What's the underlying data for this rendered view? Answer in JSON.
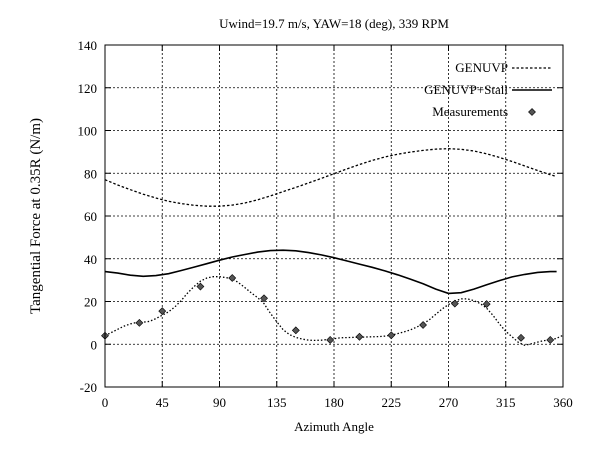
{
  "chart_data": {
    "type": "line",
    "title": "Uwind=19.7 m/s, YAW=18 (deg), 339 RPM",
    "xlabel": "Azimuth Angle",
    "ylabel": "Tangential Force at 0.35R  (N/m)",
    "xlim": [
      0,
      360
    ],
    "ylim": [
      -20,
      140
    ],
    "xticks": [
      0,
      45,
      90,
      135,
      180,
      225,
      270,
      315,
      360
    ],
    "yticks": [
      -20,
      0,
      20,
      40,
      60,
      80,
      100,
      120,
      140
    ],
    "grid": true,
    "legend_position": "top-right",
    "series": [
      {
        "name": "GENUVP",
        "style": "dotted",
        "color": "#000000",
        "x": [
          0,
          10,
          20,
          30,
          40,
          50,
          60,
          70,
          80,
          90,
          100,
          110,
          120,
          130,
          140,
          150,
          160,
          170,
          180,
          190,
          200,
          210,
          220,
          230,
          240,
          250,
          260,
          270,
          280,
          290,
          300,
          310,
          320,
          330,
          340,
          350,
          355
        ],
        "y": [
          77,
          74.5,
          72.3,
          70.2,
          68.4,
          66.9,
          65.8,
          65.0,
          64.6,
          64.6,
          65.1,
          66.1,
          67.6,
          69.4,
          71.4,
          73.4,
          75.5,
          77.6,
          79.8,
          82.0,
          84.1,
          86.0,
          87.6,
          88.9,
          89.9,
          90.7,
          91.3,
          91.5,
          91.2,
          90.4,
          89.1,
          87.4,
          85.5,
          83.4,
          81.3,
          79.3,
          78.5
        ]
      },
      {
        "name": "GENUVP+Stall",
        "style": "solid",
        "color": "#000000",
        "x": [
          0,
          10,
          20,
          30,
          40,
          50,
          60,
          70,
          80,
          90,
          100,
          110,
          120,
          130,
          140,
          150,
          160,
          170,
          180,
          190,
          200,
          210,
          220,
          230,
          240,
          250,
          260,
          270,
          280,
          290,
          300,
          310,
          320,
          330,
          340,
          350,
          355
        ],
        "y": [
          34,
          33.3,
          32.3,
          31.8,
          32.1,
          33.0,
          34.5,
          36.1,
          37.7,
          39.3,
          40.8,
          42.0,
          43.1,
          43.8,
          44.0,
          43.7,
          42.9,
          41.8,
          40.5,
          39.0,
          37.5,
          36.0,
          34.3,
          32.5,
          30.5,
          28.3,
          25.8,
          23.8,
          24.1,
          25.8,
          27.8,
          29.8,
          31.5,
          32.7,
          33.6,
          34.0,
          34.0
        ]
      },
      {
        "name": "Measurements",
        "style": "dotted-markers",
        "color": "#000000",
        "x": [
          0,
          5,
          10,
          15,
          20,
          25,
          30,
          35,
          40,
          45,
          50,
          55,
          60,
          65,
          70,
          75,
          80,
          85,
          90,
          95,
          100,
          105,
          110,
          115,
          120,
          125,
          130,
          135,
          140,
          145,
          150,
          155,
          160,
          165,
          170,
          175,
          180,
          185,
          190,
          195,
          200,
          205,
          210,
          215,
          220,
          225,
          230,
          235,
          240,
          245,
          250,
          255,
          260,
          265,
          270,
          275,
          280,
          285,
          290,
          295,
          300,
          305,
          310,
          315,
          320,
          325,
          330,
          335,
          340,
          345,
          350,
          355,
          360
        ],
        "y": [
          4,
          5.5,
          7,
          8.5,
          9.5,
          10.2,
          10.3,
          10.7,
          12,
          13.6,
          15.2,
          17.5,
          20.5,
          24,
          27,
          29.5,
          31,
          31.6,
          31.6,
          31.2,
          30.6,
          28.8,
          26.5,
          24,
          21.8,
          19,
          14.5,
          10.5,
          6.8,
          4.5,
          3.2,
          2.4,
          1.9,
          1.8,
          1.9,
          2.2,
          2.6,
          3,
          3.1,
          3.2,
          3.3,
          3.4,
          3.5,
          3.6,
          3.8,
          4.3,
          5,
          5.8,
          6.7,
          8,
          9.5,
          11.5,
          14,
          16.5,
          18.6,
          20.3,
          21.2,
          21.2,
          20.4,
          19,
          16.8,
          13.5,
          9.5,
          6,
          3.5,
          0.8,
          -0.5,
          0.2,
          1,
          1.7,
          1.9,
          2.8,
          4.2
        ],
        "marker_x": [
          0,
          27,
          45,
          75,
          100,
          125,
          150,
          177,
          200,
          225,
          250,
          275,
          300,
          327,
          350
        ],
        "marker_y": [
          4,
          10,
          15.5,
          27,
          31,
          21.5,
          6.5,
          2,
          3.5,
          4.2,
          9,
          19,
          18.8,
          3,
          2
        ]
      }
    ]
  }
}
